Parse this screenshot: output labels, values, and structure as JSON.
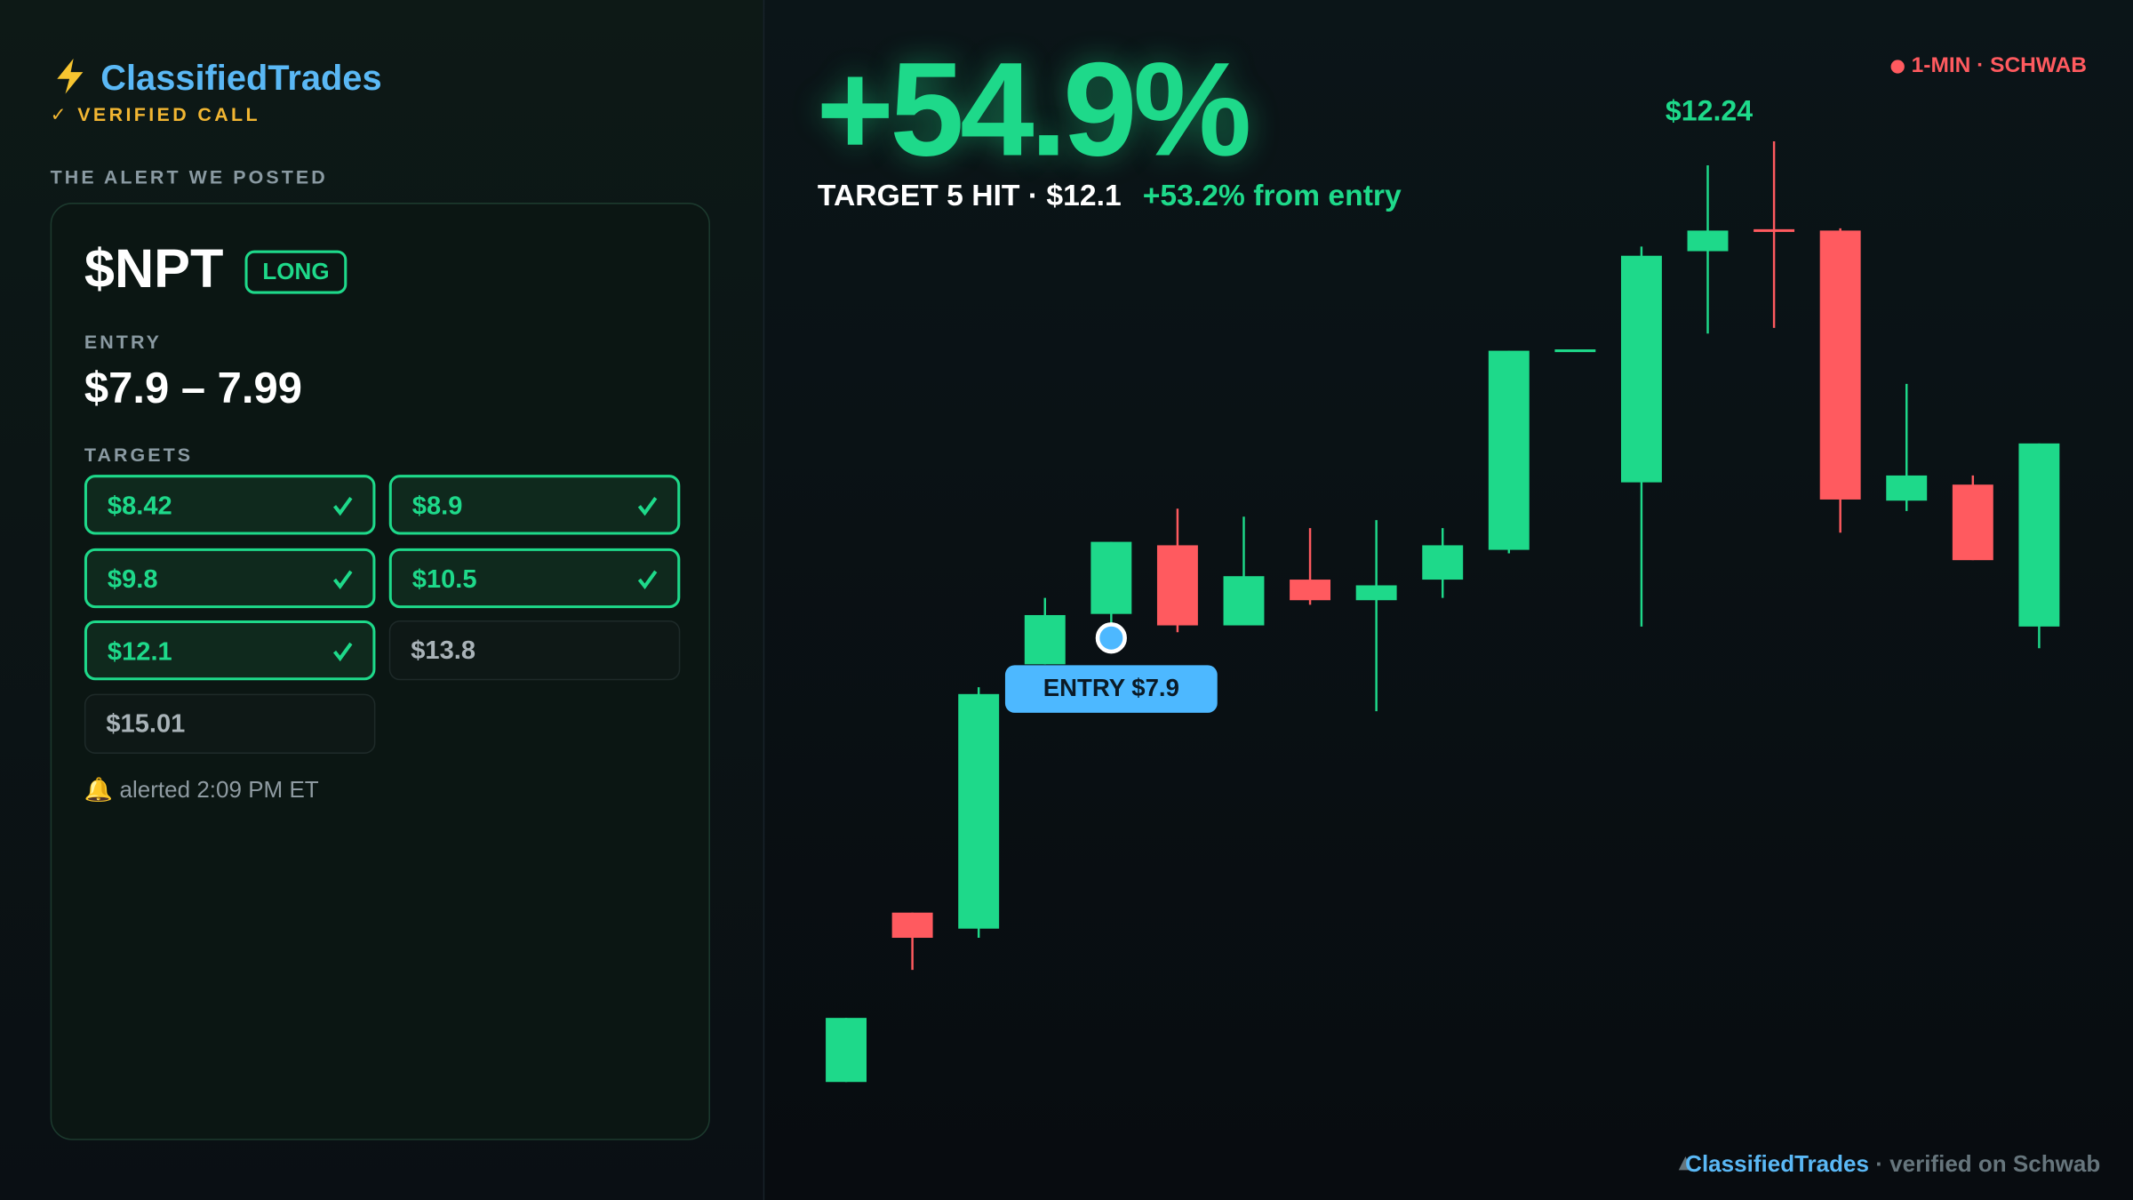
{
  "sidebar": {
    "brand": "ClassifiedTrades",
    "verified": "✓ VERIFIED CALL",
    "section_label": "THE ALERT WE POSTED",
    "alert": {
      "ticker": "$NPT",
      "side": "LONG",
      "entry_label": "ENTRY",
      "entry": "$7.9 – 7.99",
      "targets_label": "TARGETS",
      "targets": [
        {
          "label": "$8.42",
          "hit": true
        },
        {
          "label": "$8.9",
          "hit": true
        },
        {
          "label": "$9.8",
          "hit": true
        },
        {
          "label": "$10.5",
          "hit": true
        },
        {
          "label": "$12.1",
          "hit": true
        },
        {
          "label": "$13.8",
          "hit": false
        },
        {
          "label": "$15.01",
          "hit": false
        }
      ],
      "alerted": "🔔 alerted 2:09 PM ET"
    }
  },
  "header": {
    "gain": "+54.9%",
    "status": "TARGET 5 HIT · $12.1",
    "from_entry": "+53.2% from entry",
    "feed": "1-MIN · SCHWAB"
  },
  "chart_data": {
    "type": "candlestick",
    "up_color": "#1ed98a",
    "down_color": "#ff5a5f",
    "ylim": [
      3.5,
      12.5
    ],
    "candles": [
      {
        "open": 4.02,
        "high": 4.58,
        "low": 4.02,
        "close": 4.58
      },
      {
        "open": 5.5,
        "high": 5.5,
        "low": 5.0,
        "close": 5.28
      },
      {
        "open": 5.36,
        "high": 7.47,
        "low": 5.28,
        "close": 7.41
      },
      {
        "open": 7.67,
        "high": 8.25,
        "low": 7.67,
        "close": 8.1
      },
      {
        "open": 8.11,
        "high": 8.74,
        "low": 8.01,
        "close": 8.74
      },
      {
        "open": 8.71,
        "high": 9.03,
        "low": 7.95,
        "close": 8.01
      },
      {
        "open": 8.01,
        "high": 8.96,
        "low": 8.01,
        "close": 8.44
      },
      {
        "open": 8.41,
        "high": 8.86,
        "low": 8.19,
        "close": 8.23
      },
      {
        "open": 8.23,
        "high": 8.93,
        "low": 7.26,
        "close": 8.36
      },
      {
        "open": 8.41,
        "high": 8.86,
        "low": 8.25,
        "close": 8.71
      },
      {
        "open": 8.67,
        "high": 10.41,
        "low": 8.64,
        "close": 10.41
      },
      {
        "open": 10.41,
        "high": 10.41,
        "low": 10.41,
        "close": 10.41
      },
      {
        "open": 9.26,
        "high": 11.32,
        "low": 8.0,
        "close": 11.24
      },
      {
        "open": 11.28,
        "high": 12.03,
        "low": 10.56,
        "close": 11.46
      },
      {
        "open": 11.46,
        "high": 12.24,
        "low": 10.61,
        "close": 11.44
      },
      {
        "open": 11.46,
        "high": 11.48,
        "low": 8.82,
        "close": 9.11
      },
      {
        "open": 9.1,
        "high": 10.12,
        "low": 9.01,
        "close": 9.32
      },
      {
        "open": 9.24,
        "high": 9.32,
        "low": 8.58,
        "close": 8.58
      },
      {
        "open": 8.0,
        "high": 9.6,
        "low": 7.81,
        "close": 9.6
      }
    ],
    "entry_marker": {
      "label": "ENTRY $7.9",
      "value": 7.9
    },
    "high_label": {
      "label": "$12.24",
      "value": 12.24
    }
  },
  "footer": {
    "brand": "ClassifiedTrades",
    "note": "· verified on Schwab"
  }
}
